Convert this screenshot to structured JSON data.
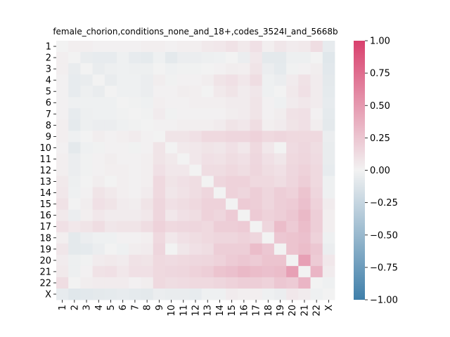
{
  "chart_data": {
    "type": "heatmap",
    "title": "female_chorion,conditions_none_and_18+,codes_3524I_and_5668b",
    "xlabel": "",
    "ylabel": "",
    "labels": [
      "1",
      "2",
      "3",
      "4",
      "5",
      "6",
      "7",
      "8",
      "9",
      "10",
      "11",
      "12",
      "13",
      "14",
      "15",
      "16",
      "17",
      "18",
      "19",
      "20",
      "21",
      "22",
      "X"
    ],
    "colorbar": {
      "min": -1.0,
      "max": 1.0,
      "ticks": [
        "1.00",
        "0.75",
        "0.50",
        "0.25",
        "0.00",
        "−0.25",
        "−0.50",
        "−0.75",
        "−1.00"
      ],
      "low_color": "#3f7faa",
      "mid_color": "#f2f2f2",
      "high_color": "#d9406d"
    },
    "grid": false,
    "legend": "colorbar-right",
    "matrix": [
      [
        0.0,
        0.02,
        0.02,
        0.01,
        0.01,
        0.01,
        0.01,
        0.02,
        0.02,
        0.01,
        0.02,
        0.02,
        0.05,
        0.06,
        0.09,
        0.05,
        0.1,
        0.02,
        0.07,
        0.04,
        0.05,
        0.12,
        -0.06
      ],
      [
        0.02,
        0.0,
        -0.05,
        -0.06,
        -0.06,
        -0.02,
        -0.06,
        -0.07,
        -0.02,
        -0.08,
        -0.04,
        -0.04,
        -0.03,
        -0.02,
        0.0,
        -0.04,
        0.06,
        -0.08,
        -0.08,
        -0.03,
        -0.03,
        0.0,
        -0.1
      ],
      [
        0.02,
        -0.05,
        0.0,
        -0.05,
        -0.03,
        -0.02,
        -0.03,
        -0.03,
        0.0,
        -0.02,
        -0.01,
        -0.01,
        0.0,
        0.01,
        0.03,
        0.02,
        0.08,
        -0.04,
        -0.07,
        -0.01,
        0.01,
        0.03,
        -0.09
      ],
      [
        0.01,
        -0.06,
        -0.05,
        0.0,
        -0.05,
        -0.02,
        -0.02,
        -0.04,
        0.03,
        -0.01,
        0.01,
        0.01,
        0.03,
        0.08,
        0.1,
        0.06,
        0.12,
        -0.02,
        -0.04,
        0.04,
        0.09,
        0.04,
        -0.08
      ],
      [
        0.01,
        -0.06,
        -0.03,
        -0.05,
        0.0,
        -0.02,
        -0.02,
        -0.04,
        0.01,
        0.01,
        0.03,
        0.02,
        0.0,
        0.05,
        0.08,
        0.04,
        0.07,
        -0.02,
        0.0,
        0.05,
        0.1,
        0.04,
        -0.07
      ],
      [
        0.01,
        -0.02,
        -0.02,
        -0.02,
        -0.02,
        0.0,
        -0.01,
        -0.02,
        0.02,
        0.01,
        0.01,
        0.02,
        0.02,
        0.02,
        0.04,
        0.04,
        0.08,
        0.01,
        -0.02,
        0.04,
        0.06,
        0.04,
        -0.06
      ],
      [
        0.01,
        -0.06,
        -0.03,
        -0.02,
        -0.02,
        -0.01,
        0.0,
        -0.01,
        0.04,
        -0.01,
        0.01,
        0.01,
        0.01,
        0.01,
        0.03,
        0.04,
        0.08,
        0.01,
        0.03,
        0.09,
        0.1,
        0.01,
        -0.07
      ],
      [
        0.02,
        -0.07,
        -0.03,
        -0.04,
        -0.04,
        -0.02,
        -0.01,
        0.0,
        0.01,
        0.01,
        0.02,
        0.02,
        0.02,
        0.04,
        0.08,
        0.06,
        0.12,
        0.02,
        0.04,
        0.08,
        0.1,
        0.03,
        -0.08
      ],
      [
        0.02,
        -0.02,
        0.0,
        0.03,
        0.01,
        0.02,
        0.04,
        0.01,
        0.0,
        0.08,
        0.08,
        0.1,
        0.14,
        0.14,
        0.16,
        0.16,
        0.18,
        0.14,
        0.16,
        0.14,
        0.14,
        0.14,
        -0.04
      ],
      [
        0.01,
        -0.08,
        -0.02,
        -0.01,
        0.01,
        0.01,
        -0.01,
        0.01,
        0.08,
        0.0,
        0.05,
        0.06,
        0.08,
        0.07,
        0.1,
        0.06,
        0.14,
        0.06,
        0.0,
        0.13,
        0.15,
        0.12,
        -0.05
      ],
      [
        0.02,
        -0.04,
        -0.01,
        0.01,
        0.03,
        0.01,
        0.01,
        0.02,
        0.08,
        0.05,
        0.0,
        0.06,
        0.1,
        0.09,
        0.12,
        0.1,
        0.15,
        0.1,
        0.07,
        0.14,
        0.16,
        0.13,
        -0.05
      ],
      [
        0.02,
        -0.04,
        -0.01,
        0.01,
        0.02,
        0.02,
        0.01,
        0.02,
        0.1,
        0.06,
        0.06,
        0.0,
        0.12,
        0.12,
        0.14,
        0.12,
        0.16,
        0.12,
        0.1,
        0.15,
        0.18,
        0.14,
        -0.06
      ],
      [
        0.05,
        -0.03,
        0.0,
        0.03,
        0.0,
        0.02,
        0.01,
        0.02,
        0.14,
        0.08,
        0.1,
        0.12,
        0.0,
        0.16,
        0.18,
        0.18,
        0.14,
        0.14,
        0.12,
        0.16,
        0.2,
        0.14,
        -0.02
      ],
      [
        0.06,
        -0.02,
        0.01,
        0.08,
        0.05,
        0.02,
        0.01,
        0.04,
        0.14,
        0.07,
        0.09,
        0.12,
        0.16,
        0.0,
        0.18,
        0.16,
        0.2,
        0.16,
        0.2,
        0.18,
        0.26,
        0.16,
        -0.02
      ],
      [
        0.09,
        0.0,
        0.03,
        0.1,
        0.08,
        0.04,
        0.03,
        0.08,
        0.16,
        0.1,
        0.12,
        0.14,
        0.18,
        0.18,
        0.0,
        0.22,
        0.2,
        0.16,
        0.2,
        0.22,
        0.28,
        0.18,
        0.04
      ],
      [
        0.05,
        -0.04,
        0.02,
        0.06,
        0.04,
        0.04,
        0.04,
        0.06,
        0.16,
        0.06,
        0.1,
        0.12,
        0.18,
        0.16,
        0.22,
        0.0,
        0.22,
        0.18,
        0.2,
        0.24,
        0.32,
        0.2,
        0.02
      ],
      [
        0.1,
        0.06,
        0.08,
        0.12,
        0.07,
        0.08,
        0.08,
        0.12,
        0.18,
        0.14,
        0.15,
        0.16,
        0.14,
        0.2,
        0.2,
        0.22,
        0.0,
        0.16,
        0.3,
        0.22,
        0.3,
        0.2,
        0.02
      ],
      [
        0.02,
        -0.08,
        -0.04,
        -0.02,
        -0.02,
        0.01,
        0.01,
        0.02,
        0.14,
        0.06,
        0.1,
        0.12,
        0.14,
        0.16,
        0.16,
        0.18,
        0.16,
        0.0,
        0.24,
        0.26,
        0.28,
        0.18,
        -0.02
      ],
      [
        0.07,
        -0.08,
        -0.07,
        -0.04,
        0.0,
        -0.02,
        0.03,
        0.04,
        0.16,
        0.0,
        0.07,
        0.1,
        0.12,
        0.2,
        0.2,
        0.2,
        0.3,
        0.24,
        0.0,
        0.26,
        0.3,
        0.24,
        -0.04
      ],
      [
        0.04,
        -0.03,
        -0.01,
        0.04,
        0.05,
        0.04,
        0.09,
        0.08,
        0.14,
        0.13,
        0.14,
        0.15,
        0.16,
        0.18,
        0.22,
        0.24,
        0.22,
        0.26,
        0.26,
        0.0,
        0.46,
        0.22,
        0.06
      ],
      [
        0.05,
        -0.03,
        0.01,
        0.09,
        0.1,
        0.06,
        0.1,
        0.1,
        0.14,
        0.15,
        0.16,
        0.18,
        0.2,
        0.26,
        0.28,
        0.32,
        0.3,
        0.28,
        0.3,
        0.46,
        0.0,
        0.34,
        0.04
      ],
      [
        0.12,
        0.0,
        0.03,
        0.04,
        0.04,
        0.04,
        0.01,
        0.03,
        0.14,
        0.12,
        0.13,
        0.14,
        0.14,
        0.16,
        0.18,
        0.2,
        0.2,
        0.18,
        0.24,
        0.22,
        0.34,
        0.0,
        -0.02
      ],
      [
        -0.06,
        -0.1,
        -0.09,
        -0.08,
        -0.07,
        -0.06,
        -0.07,
        -0.08,
        -0.04,
        -0.05,
        -0.05,
        -0.06,
        -0.02,
        -0.02,
        0.04,
        0.02,
        0.02,
        -0.02,
        -0.04,
        0.06,
        0.04,
        -0.02,
        0.0
      ]
    ]
  }
}
